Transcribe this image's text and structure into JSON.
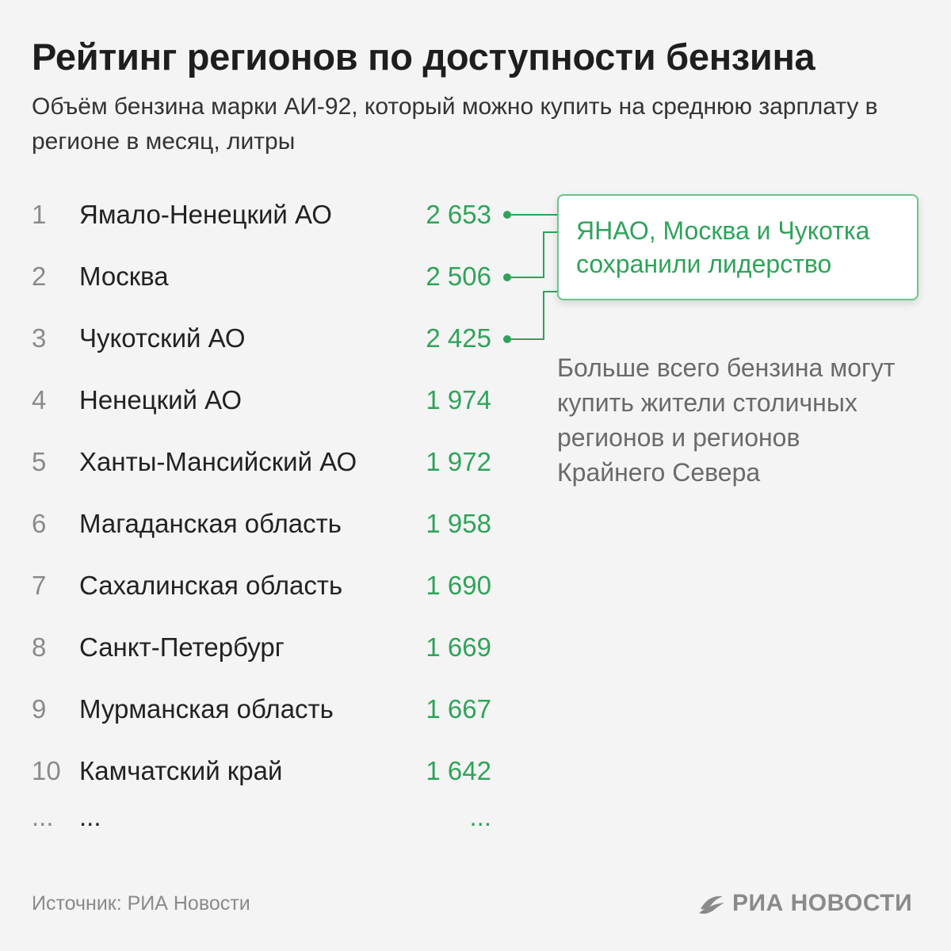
{
  "colors": {
    "accent": "#2fa35a",
    "callout_border": "#6cc48b",
    "text": "#222222",
    "muted": "#8a8a8a",
    "background": "#f4f4f4"
  },
  "chart_data": {
    "type": "table",
    "title": "Рейтинг регионов по доступности бензина",
    "subtitle": "Объём бензина марки АИ-92, который можно купить на среднюю зарплату в регионе в месяц, литры",
    "rows": [
      {
        "rank": "1",
        "region": "Ямало-Ненецкий АО",
        "value": "2 653"
      },
      {
        "rank": "2",
        "region": "Москва",
        "value": "2 506"
      },
      {
        "rank": "3",
        "region": "Чукотский АО",
        "value": "2 425"
      },
      {
        "rank": "4",
        "region": "Ненецкий АО",
        "value": "1 974"
      },
      {
        "rank": "5",
        "region": "Ханты-Мансийский АО",
        "value": "1 972"
      },
      {
        "rank": "6",
        "region": "Магаданская область",
        "value": "1 958"
      },
      {
        "rank": "7",
        "region": "Сахалинская область",
        "value": "1 690"
      },
      {
        "rank": "8",
        "region": "Санкт-Петербург",
        "value": "1 669"
      },
      {
        "rank": "9",
        "region": "Мурманская область",
        "value": "1 667"
      },
      {
        "rank": "10",
        "region": "Камчатский край",
        "value": "1 642"
      },
      {
        "rank": "...",
        "region": "...",
        "value": "..."
      }
    ],
    "callout": "ЯНАО, Москва и Чукотка сохранили лидерство",
    "note": "Больше всего бензина могут купить жители столичных регионов и регионов Крайнего Севера"
  },
  "footer": {
    "source": "Источник: РИА Новости",
    "logo_text": "РИА НОВОСТИ"
  },
  "icons": {
    "logo": "ria-logo-icon"
  }
}
